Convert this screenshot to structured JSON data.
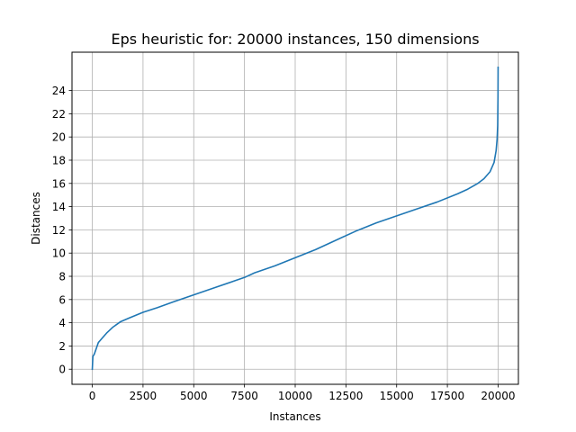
{
  "chart_data": {
    "type": "line",
    "title": "Eps heuristic for: 20000 instances, 150 dimensions",
    "xlabel": "Instances",
    "ylabel": "Distances",
    "xlim": [
      -1000,
      21000
    ],
    "ylim": [
      -1.3,
      27.3
    ],
    "grid": true,
    "x_ticks": [
      0,
      2500,
      5000,
      7500,
      10000,
      12500,
      15000,
      17500,
      20000
    ],
    "x_tick_labels": [
      "0",
      "2500",
      "5000",
      "7500",
      "10000",
      "12500",
      "15000",
      "17500",
      "20000"
    ],
    "y_ticks": [
      0,
      2,
      4,
      6,
      8,
      10,
      12,
      14,
      16,
      18,
      20,
      22,
      24
    ],
    "y_tick_labels": [
      "0",
      "2",
      "4",
      "6",
      "8",
      "10",
      "12",
      "14",
      "16",
      "18",
      "20",
      "22",
      "24"
    ],
    "series": [
      {
        "color": "#1f77b4",
        "x": [
          0,
          30,
          100,
          200,
          300,
          400,
          500,
          700,
          1000,
          1400,
          1800,
          2500,
          3200,
          4000,
          5000,
          6000,
          7000,
          7500,
          8000,
          9000,
          10000,
          11000,
          12000,
          13000,
          14000,
          15000,
          16000,
          17000,
          18000,
          18500,
          19000,
          19300,
          19600,
          19800,
          19900,
          19950,
          19980,
          19995,
          20000
        ],
        "y": [
          0.0,
          1.1,
          1.3,
          1.8,
          2.3,
          2.5,
          2.7,
          3.1,
          3.6,
          4.1,
          4.4,
          4.9,
          5.3,
          5.8,
          6.4,
          7.0,
          7.6,
          7.9,
          8.3,
          8.9,
          9.6,
          10.3,
          11.1,
          11.9,
          12.6,
          13.2,
          13.8,
          14.4,
          15.1,
          15.5,
          16.0,
          16.4,
          17.0,
          17.8,
          18.8,
          19.8,
          21.0,
          23.5,
          26.0
        ]
      }
    ]
  }
}
